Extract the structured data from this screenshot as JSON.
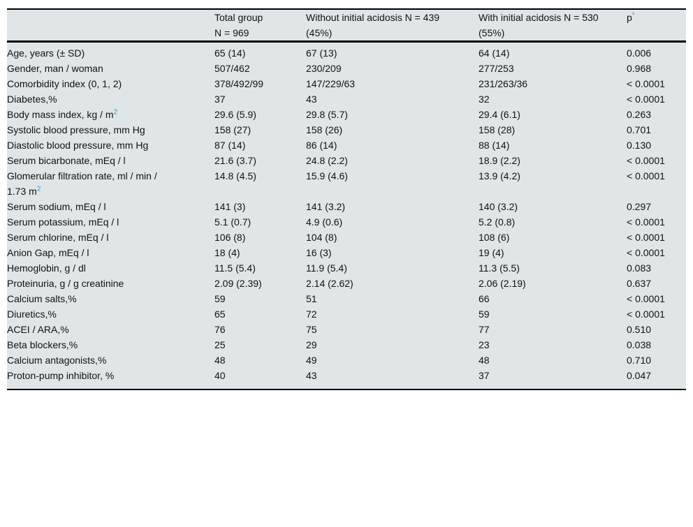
{
  "accent_colors": {
    "superscript_blue": "#2e9fd2",
    "table_background": "#e0e5e8",
    "text": "#111111"
  },
  "table": {
    "header": [
      {
        "text": ""
      },
      {
        "text": "Total group\nN = 969"
      },
      {
        "text": "Without initial acidosis N = 439\n(45%)"
      },
      {
        "text": "With initial acidosis N = 530\n(55%)"
      },
      {
        "text": "p",
        "sup": "*"
      }
    ],
    "rows": [
      {
        "label": {
          "text": "Age, years (± SD)"
        },
        "values": [
          "65 (14)",
          "67 (13)",
          "64 (14)"
        ],
        "p": "0.006"
      },
      {
        "label": {
          "text": "Gender, man / woman"
        },
        "values": [
          "507/462",
          "230/209",
          "277/253"
        ],
        "p": "0.968"
      },
      {
        "label": {
          "text": "Comorbidity index (0, 1, 2)"
        },
        "values": [
          "378/492/99",
          "147/229/63",
          "231/263/36"
        ],
        "p": "< 0.0001"
      },
      {
        "label": {
          "text": "Diabetes,%"
        },
        "values": [
          "37",
          "43",
          "32"
        ],
        "p": "< 0.0001"
      },
      {
        "label": {
          "text": "Body mass index, kg / m",
          "sup": "2"
        },
        "values": [
          "29.6 (5.9)",
          "29.8 (5.7)",
          "29.4 (6.1)"
        ],
        "p": "0.263"
      },
      {
        "label": {
          "text": "Systolic blood pressure, mm Hg"
        },
        "values": [
          "158 (27)",
          "158 (26)",
          "158 (28)"
        ],
        "p": "0.701"
      },
      {
        "label": {
          "text": "Diastolic blood pressure, mm Hg"
        },
        "values": [
          "87 (14)",
          "86 (14)",
          "88 (14)"
        ],
        "p": "0.130"
      },
      {
        "label": {
          "text": "Serum bicarbonate, mEq / l"
        },
        "values": [
          "21.6 (3.7)",
          "24.8 (2.2)",
          "18.9 (2.2)"
        ],
        "p": "< 0.0001"
      },
      {
        "label": {
          "text": "Glomerular filtration rate, ml / min /\n1.73 m",
          "sup": "2"
        },
        "values": [
          "14.8 (4.5)",
          "15.9 (4.6)",
          "13.9 (4.2)"
        ],
        "p": "< 0.0001"
      },
      {
        "label": {
          "text": "Serum sodium, mEq / l"
        },
        "values": [
          "141 (3)",
          "141 (3.2)",
          "140 (3.2)"
        ],
        "p": "0.297"
      },
      {
        "label": {
          "text": "Serum potassium, mEq / l"
        },
        "values": [
          "5.1 (0.7)",
          "4.9 (0.6)",
          "5.2 (0.8)"
        ],
        "p": "< 0.0001"
      },
      {
        "label": {
          "text": "Serum chlorine, mEq / l"
        },
        "values": [
          "106 (8)",
          "104 (8)",
          "108 (6)"
        ],
        "p": "< 0.0001"
      },
      {
        "label": {
          "text": "Anion Gap, mEq / l"
        },
        "values": [
          "18 (4)",
          "16 (3)",
          "19 (4)"
        ],
        "p": "< 0.0001"
      },
      {
        "label": {
          "text": "Hemoglobin, g / dl"
        },
        "values": [
          "11.5 (5.4)",
          "11.9 (5.4)",
          "11.3 (5.5)"
        ],
        "p": "0.083"
      },
      {
        "label": {
          "text": "Proteinuria, g / g creatinine"
        },
        "values": [
          "2.09 (2.39)",
          "2.14 (2.62)",
          "2.06 (2.19)"
        ],
        "p": "0.637"
      },
      {
        "label": {
          "text": "Calcium salts,%"
        },
        "values": [
          "59",
          "51",
          "66"
        ],
        "p": "< 0.0001"
      },
      {
        "label": {
          "text": "Diuretics,%"
        },
        "values": [
          "65",
          "72",
          "59"
        ],
        "p": "< 0.0001"
      },
      {
        "label": {
          "text": "ACEI / ARA,%"
        },
        "values": [
          "76",
          "75",
          "77"
        ],
        "p": "0.510"
      },
      {
        "label": {
          "text": "Beta blockers,%"
        },
        "values": [
          "25",
          "29",
          "23"
        ],
        "p": "0.038"
      },
      {
        "label": {
          "text": "Calcium antagonists,%"
        },
        "values": [
          "48",
          "49",
          "48"
        ],
        "p": "0.710"
      },
      {
        "label": {
          "text": "Proton-pump inhibitor, %"
        },
        "values": [
          "40",
          "43",
          "37"
        ],
        "p": "0.047"
      }
    ]
  }
}
